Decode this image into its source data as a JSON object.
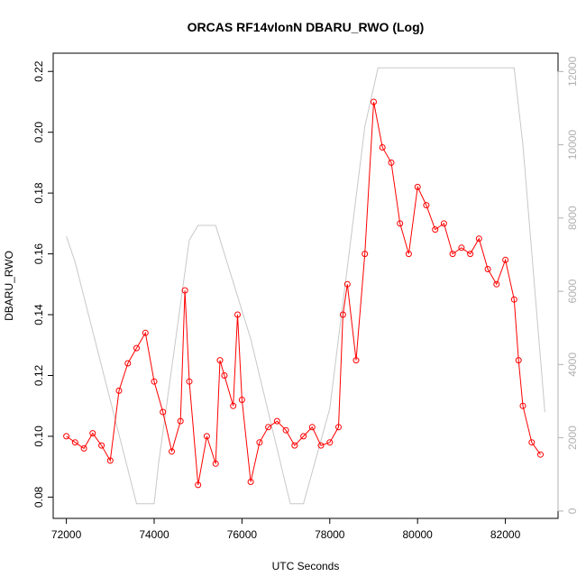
{
  "chart_data": {
    "type": "scatter",
    "title": "ORCAS RF14vlonN DBARU_RWO (Log)",
    "xlabel": "UTC Seconds",
    "ylabel": "DBARU_RWO",
    "xlim": [
      71700,
      83200
    ],
    "ylim": [
      0.073,
      0.226
    ],
    "y2lim": [
      -200,
      12500
    ],
    "xticks": [
      72000,
      74000,
      76000,
      78000,
      80000,
      82000
    ],
    "yticks": [
      0.08,
      0.1,
      0.12,
      0.14,
      0.16,
      0.18,
      0.2,
      0.22
    ],
    "y2ticks": [
      0,
      2000,
      4000,
      6000,
      8000,
      10000,
      12000
    ],
    "grid": false,
    "colors": {
      "points": "#ff0000",
      "altitude": "#c8c8c8",
      "right_axis": "#b0b0b0"
    },
    "series": [
      {
        "values": [
          [
            72000,
            0.1
          ],
          [
            72200,
            0.098
          ],
          [
            72400,
            0.096
          ],
          [
            72600,
            0.101
          ],
          [
            72800,
            0.097
          ],
          [
            73000,
            0.092
          ],
          [
            73200,
            0.115
          ],
          [
            73400,
            0.124
          ],
          [
            73600,
            0.129
          ],
          [
            73800,
            0.134
          ],
          [
            74000,
            0.118
          ],
          [
            74200,
            0.108
          ],
          [
            74400,
            0.095
          ],
          [
            74600,
            0.105
          ],
          [
            74700,
            0.148
          ],
          [
            74800,
            0.118
          ],
          [
            75000,
            0.084
          ],
          [
            75200,
            0.1
          ],
          [
            75400,
            0.091
          ],
          [
            75500,
            0.125
          ],
          [
            75600,
            0.12
          ],
          [
            75800,
            0.11
          ],
          [
            75900,
            0.14
          ],
          [
            76000,
            0.112
          ],
          [
            76200,
            0.085
          ],
          [
            76400,
            0.098
          ],
          [
            76600,
            0.103
          ],
          [
            76800,
            0.105
          ],
          [
            77000,
            0.102
          ],
          [
            77200,
            0.097
          ],
          [
            77400,
            0.1
          ],
          [
            77600,
            0.103
          ],
          [
            77800,
            0.097
          ],
          [
            78000,
            0.098
          ],
          [
            78200,
            0.103
          ],
          [
            78300,
            0.14
          ],
          [
            78400,
            0.15
          ],
          [
            78600,
            0.125
          ],
          [
            78800,
            0.16
          ],
          [
            79000,
            0.21
          ],
          [
            79200,
            0.195
          ],
          [
            79400,
            0.19
          ],
          [
            79600,
            0.17
          ],
          [
            79800,
            0.16
          ],
          [
            80000,
            0.182
          ],
          [
            80200,
            0.176
          ],
          [
            80400,
            0.168
          ],
          [
            80600,
            0.17
          ],
          [
            80800,
            0.16
          ],
          [
            81000,
            0.162
          ],
          [
            81200,
            0.16
          ],
          [
            81400,
            0.165
          ],
          [
            81600,
            0.155
          ],
          [
            81800,
            0.15
          ],
          [
            82000,
            0.158
          ],
          [
            82200,
            0.145
          ],
          [
            82300,
            0.125
          ],
          [
            82400,
            0.11
          ],
          [
            82600,
            0.098
          ],
          [
            82800,
            0.094
          ]
        ]
      },
      {
        "axis": "right",
        "values": [
          [
            72000,
            7500
          ],
          [
            72200,
            6800
          ],
          [
            73600,
            200
          ],
          [
            74000,
            200
          ],
          [
            74100,
            1300
          ],
          [
            74800,
            7400
          ],
          [
            75000,
            7800
          ],
          [
            75400,
            7800
          ],
          [
            76200,
            4700
          ],
          [
            77100,
            200
          ],
          [
            77400,
            200
          ],
          [
            78000,
            2800
          ],
          [
            78800,
            10500
          ],
          [
            79100,
            12100
          ],
          [
            82200,
            12100
          ],
          [
            82400,
            10000
          ],
          [
            82900,
            2700
          ]
        ]
      }
    ]
  }
}
